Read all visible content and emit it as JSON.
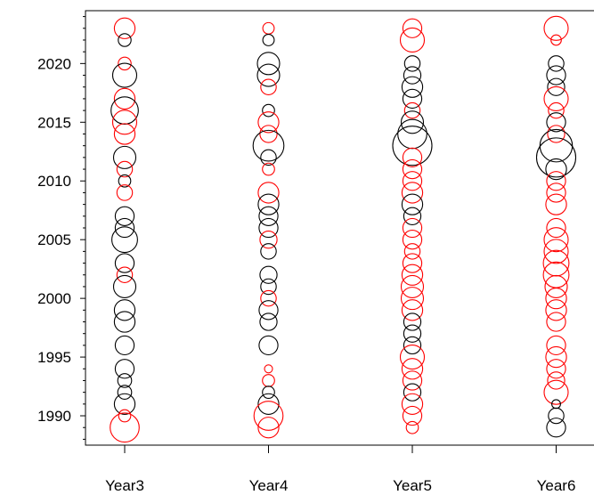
{
  "chart_data": {
    "type": "scatter",
    "title": "",
    "xlabel": "",
    "ylabel": "",
    "categories": [
      "Year3",
      "Year4",
      "Year5",
      "Year6"
    ],
    "ylim": [
      1987.5,
      2024.5
    ],
    "y_ticks": [
      1990,
      1995,
      2000,
      2005,
      2010,
      2015,
      2020
    ],
    "y_tick_labels": [
      "1990",
      "1995",
      "2000",
      "2005",
      "2010",
      "2015",
      "2020"
    ],
    "grid": false,
    "legend": "none",
    "colors": {
      "positive": "#000000",
      "negative": "#ff0000"
    },
    "series": [
      {
        "category": "Year3",
        "points": [
          {
            "year": 2023,
            "size": 0.45,
            "sign": "negative"
          },
          {
            "year": 2022,
            "size": 0.22,
            "sign": "positive"
          },
          {
            "year": 2020,
            "size": 0.22,
            "sign": "negative"
          },
          {
            "year": 2019,
            "size": 0.55,
            "sign": "positive"
          },
          {
            "year": 2017,
            "size": 0.45,
            "sign": "negative"
          },
          {
            "year": 2016,
            "size": 0.65,
            "sign": "positive"
          },
          {
            "year": 2015,
            "size": 0.55,
            "sign": "negative"
          },
          {
            "year": 2014,
            "size": 0.45,
            "sign": "negative"
          },
          {
            "year": 2012,
            "size": 0.5,
            "sign": "positive"
          },
          {
            "year": 2011,
            "size": 0.3,
            "sign": "negative"
          },
          {
            "year": 2010,
            "size": 0.2,
            "sign": "positive"
          },
          {
            "year": 2009,
            "size": 0.3,
            "sign": "negative"
          },
          {
            "year": 2007,
            "size": 0.4,
            "sign": "positive"
          },
          {
            "year": 2006,
            "size": 0.4,
            "sign": "positive"
          },
          {
            "year": 2005,
            "size": 0.6,
            "sign": "positive"
          },
          {
            "year": 2003,
            "size": 0.4,
            "sign": "positive"
          },
          {
            "year": 2002,
            "size": 0.3,
            "sign": "negative"
          },
          {
            "year": 2001,
            "size": 0.5,
            "sign": "positive"
          },
          {
            "year": 1999,
            "size": 0.45,
            "sign": "positive"
          },
          {
            "year": 1998,
            "size": 0.45,
            "sign": "positive"
          },
          {
            "year": 1996,
            "size": 0.4,
            "sign": "positive"
          },
          {
            "year": 1994,
            "size": 0.4,
            "sign": "positive"
          },
          {
            "year": 1993,
            "size": 0.25,
            "sign": "positive"
          },
          {
            "year": 1992,
            "size": 0.25,
            "sign": "positive"
          },
          {
            "year": 1991,
            "size": 0.45,
            "sign": "positive"
          },
          {
            "year": 1990,
            "size": 0.2,
            "sign": "negative"
          },
          {
            "year": 1989,
            "size": 0.7,
            "sign": "negative"
          }
        ]
      },
      {
        "category": "Year4",
        "points": [
          {
            "year": 2023,
            "size": 0.18,
            "sign": "negative"
          },
          {
            "year": 2022,
            "size": 0.18,
            "sign": "positive"
          },
          {
            "year": 2020,
            "size": 0.5,
            "sign": "positive"
          },
          {
            "year": 2019,
            "size": 0.5,
            "sign": "positive"
          },
          {
            "year": 2018,
            "size": 0.3,
            "sign": "negative"
          },
          {
            "year": 2016,
            "size": 0.2,
            "sign": "positive"
          },
          {
            "year": 2015,
            "size": 0.45,
            "sign": "negative"
          },
          {
            "year": 2014,
            "size": 0.35,
            "sign": "negative"
          },
          {
            "year": 2013,
            "size": 0.75,
            "sign": "positive"
          },
          {
            "year": 2012,
            "size": 0.3,
            "sign": "positive"
          },
          {
            "year": 2011,
            "size": 0.2,
            "sign": "negative"
          },
          {
            "year": 2009,
            "size": 0.45,
            "sign": "negative"
          },
          {
            "year": 2008,
            "size": 0.45,
            "sign": "positive"
          },
          {
            "year": 2007,
            "size": 0.4,
            "sign": "positive"
          },
          {
            "year": 2006,
            "size": 0.4,
            "sign": "positive"
          },
          {
            "year": 2005,
            "size": 0.35,
            "sign": "negative"
          },
          {
            "year": 2004,
            "size": 0.3,
            "sign": "positive"
          },
          {
            "year": 2002,
            "size": 0.35,
            "sign": "positive"
          },
          {
            "year": 2001,
            "size": 0.3,
            "sign": "positive"
          },
          {
            "year": 2000,
            "size": 0.3,
            "sign": "negative"
          },
          {
            "year": 1999,
            "size": 0.4,
            "sign": "positive"
          },
          {
            "year": 1998,
            "size": 0.35,
            "sign": "positive"
          },
          {
            "year": 1996,
            "size": 0.4,
            "sign": "positive"
          },
          {
            "year": 1994,
            "size": 0.08,
            "sign": "negative"
          },
          {
            "year": 1993,
            "size": 0.2,
            "sign": "negative"
          },
          {
            "year": 1992,
            "size": 0.2,
            "sign": "positive"
          },
          {
            "year": 1991,
            "size": 0.45,
            "sign": "positive"
          },
          {
            "year": 1990,
            "size": 0.7,
            "sign": "negative"
          },
          {
            "year": 1989,
            "size": 0.45,
            "sign": "negative"
          }
        ]
      },
      {
        "category": "Year5",
        "points": [
          {
            "year": 2023,
            "size": 0.4,
            "sign": "negative"
          },
          {
            "year": 2022,
            "size": 0.55,
            "sign": "negative"
          },
          {
            "year": 2020,
            "size": 0.3,
            "sign": "positive"
          },
          {
            "year": 2019,
            "size": 0.35,
            "sign": "positive"
          },
          {
            "year": 2018,
            "size": 0.45,
            "sign": "positive"
          },
          {
            "year": 2017,
            "size": 0.4,
            "sign": "positive"
          },
          {
            "year": 2016,
            "size": 0.3,
            "sign": "negative"
          },
          {
            "year": 2015,
            "size": 0.5,
            "sign": "positive"
          },
          {
            "year": 2014,
            "size": 0.7,
            "sign": "positive"
          },
          {
            "year": 2013,
            "size": 1.0,
            "sign": "positive"
          },
          {
            "year": 2012,
            "size": 0.4,
            "sign": "negative"
          },
          {
            "year": 2011,
            "size": 0.4,
            "sign": "negative"
          },
          {
            "year": 2010,
            "size": 0.4,
            "sign": "negative"
          },
          {
            "year": 2009,
            "size": 0.45,
            "sign": "negative"
          },
          {
            "year": 2008,
            "size": 0.45,
            "sign": "positive"
          },
          {
            "year": 2007,
            "size": 0.35,
            "sign": "positive"
          },
          {
            "year": 2006,
            "size": 0.4,
            "sign": "negative"
          },
          {
            "year": 2005,
            "size": 0.4,
            "sign": "negative"
          },
          {
            "year": 2004,
            "size": 0.3,
            "sign": "negative"
          },
          {
            "year": 2003,
            "size": 0.4,
            "sign": "negative"
          },
          {
            "year": 2002,
            "size": 0.45,
            "sign": "negative"
          },
          {
            "year": 2001,
            "size": 0.5,
            "sign": "negative"
          },
          {
            "year": 2000,
            "size": 0.5,
            "sign": "negative"
          },
          {
            "year": 1999,
            "size": 0.45,
            "sign": "negative"
          },
          {
            "year": 1998,
            "size": 0.35,
            "sign": "positive"
          },
          {
            "year": 1997,
            "size": 0.35,
            "sign": "positive"
          },
          {
            "year": 1996,
            "size": 0.35,
            "sign": "positive"
          },
          {
            "year": 1995,
            "size": 0.55,
            "sign": "negative"
          },
          {
            "year": 1994,
            "size": 0.45,
            "sign": "negative"
          },
          {
            "year": 1993,
            "size": 0.4,
            "sign": "negative"
          },
          {
            "year": 1992,
            "size": 0.35,
            "sign": "positive"
          },
          {
            "year": 1991,
            "size": 0.45,
            "sign": "negative"
          },
          {
            "year": 1990,
            "size": 0.4,
            "sign": "negative"
          },
          {
            "year": 1989,
            "size": 0.2,
            "sign": "negative"
          }
        ]
      },
      {
        "category": "Year6",
        "points": [
          {
            "year": 2023,
            "size": 0.55,
            "sign": "negative"
          },
          {
            "year": 2022,
            "size": 0.15,
            "sign": "negative"
          },
          {
            "year": 2020,
            "size": 0.3,
            "sign": "positive"
          },
          {
            "year": 2019,
            "size": 0.4,
            "sign": "positive"
          },
          {
            "year": 2018,
            "size": 0.35,
            "sign": "positive"
          },
          {
            "year": 2017,
            "size": 0.55,
            "sign": "negative"
          },
          {
            "year": 2016,
            "size": 0.3,
            "sign": "negative"
          },
          {
            "year": 2015,
            "size": 0.4,
            "sign": "positive"
          },
          {
            "year": 2014,
            "size": 0.35,
            "sign": "negative"
          },
          {
            "year": 2013,
            "size": 0.8,
            "sign": "positive"
          },
          {
            "year": 2012,
            "size": 1.0,
            "sign": "positive"
          },
          {
            "year": 2011,
            "size": 0.45,
            "sign": "positive"
          },
          {
            "year": 2010,
            "size": 0.4,
            "sign": "negative"
          },
          {
            "year": 2009,
            "size": 0.4,
            "sign": "negative"
          },
          {
            "year": 2008,
            "size": 0.45,
            "sign": "negative"
          },
          {
            "year": 2006,
            "size": 0.4,
            "sign": "negative"
          },
          {
            "year": 2005,
            "size": 0.55,
            "sign": "negative"
          },
          {
            "year": 2004,
            "size": 0.55,
            "sign": "negative"
          },
          {
            "year": 2003,
            "size": 0.6,
            "sign": "negative"
          },
          {
            "year": 2002,
            "size": 0.6,
            "sign": "negative"
          },
          {
            "year": 2001,
            "size": 0.5,
            "sign": "negative"
          },
          {
            "year": 2000,
            "size": 0.45,
            "sign": "negative"
          },
          {
            "year": 1999,
            "size": 0.45,
            "sign": "negative"
          },
          {
            "year": 1998,
            "size": 0.4,
            "sign": "negative"
          },
          {
            "year": 1996,
            "size": 0.4,
            "sign": "negative"
          },
          {
            "year": 1995,
            "size": 0.45,
            "sign": "negative"
          },
          {
            "year": 1994,
            "size": 0.4,
            "sign": "negative"
          },
          {
            "year": 1993,
            "size": 0.35,
            "sign": "negative"
          },
          {
            "year": 1992,
            "size": 0.55,
            "sign": "negative"
          },
          {
            "year": 1991,
            "size": 0.1,
            "sign": "positive"
          },
          {
            "year": 1990,
            "size": 0.3,
            "sign": "positive"
          },
          {
            "year": 1989,
            "size": 0.4,
            "sign": "positive"
          }
        ]
      }
    ]
  }
}
